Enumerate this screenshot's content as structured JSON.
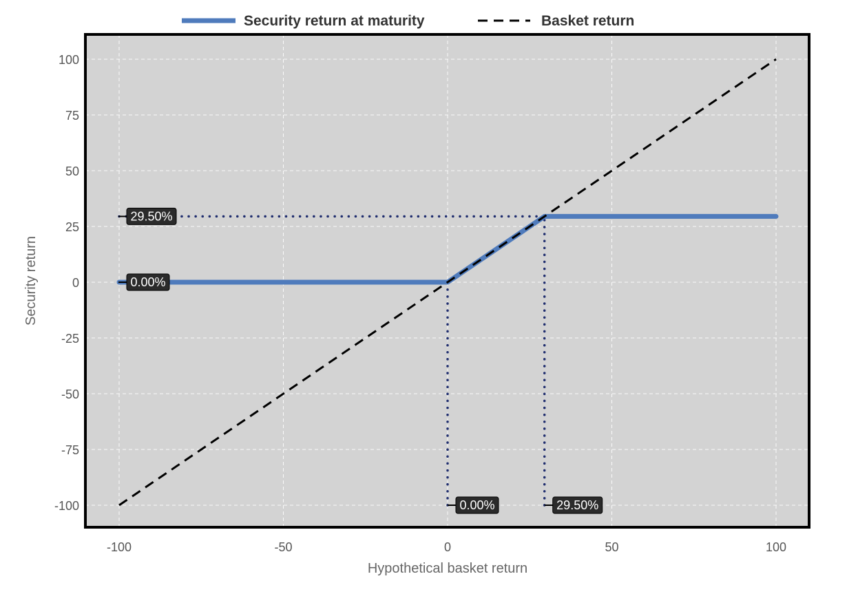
{
  "chart_data": {
    "type": "line",
    "xlabel": "Hypothetical basket return",
    "ylabel": "Security return",
    "xlim": [
      -100,
      100
    ],
    "ylim": [
      -100,
      100
    ],
    "x_ticks": [
      -100,
      -50,
      0,
      50,
      100
    ],
    "y_ticks": [
      100,
      75,
      50,
      25,
      0,
      -25,
      -50,
      -75,
      -100
    ],
    "grid": true,
    "legend_position": "top",
    "plot_background": "#d3d3d3",
    "series": [
      {
        "name": "Security return at maturity",
        "style": "solid",
        "color": "#4f7bbc",
        "x": [
          -100,
          0,
          29.5,
          100
        ],
        "y": [
          0,
          0,
          29.5,
          29.5
        ]
      },
      {
        "name": "Basket return",
        "style": "dashed",
        "color": "#000000",
        "x": [
          -100,
          100
        ],
        "y": [
          -100,
          100
        ]
      }
    ],
    "reference_lines": [
      {
        "orientation": "horizontal",
        "value": 29.5,
        "x_from": -100,
        "x_to": 29.5,
        "style": "dotted",
        "color": "#1f2d6e"
      },
      {
        "orientation": "horizontal",
        "value": 0,
        "x_from": -100,
        "x_to": 0,
        "style": "dotted",
        "color": "#1f2d6e"
      },
      {
        "orientation": "vertical",
        "value": 0,
        "y_from": -100,
        "y_to": 0,
        "style": "dotted",
        "color": "#1f2d6e"
      },
      {
        "orientation": "vertical",
        "value": 29.5,
        "y_from": -100,
        "y_to": 29.5,
        "style": "dotted",
        "color": "#1f2d6e"
      }
    ],
    "flags": [
      {
        "axis": "y",
        "value": 29.5,
        "text": "29.50%"
      },
      {
        "axis": "y",
        "value": 0,
        "text": "0.00%"
      },
      {
        "axis": "x",
        "value": 0,
        "text": "0.00%"
      },
      {
        "axis": "x",
        "value": 29.5,
        "text": "29.50%"
      }
    ]
  }
}
